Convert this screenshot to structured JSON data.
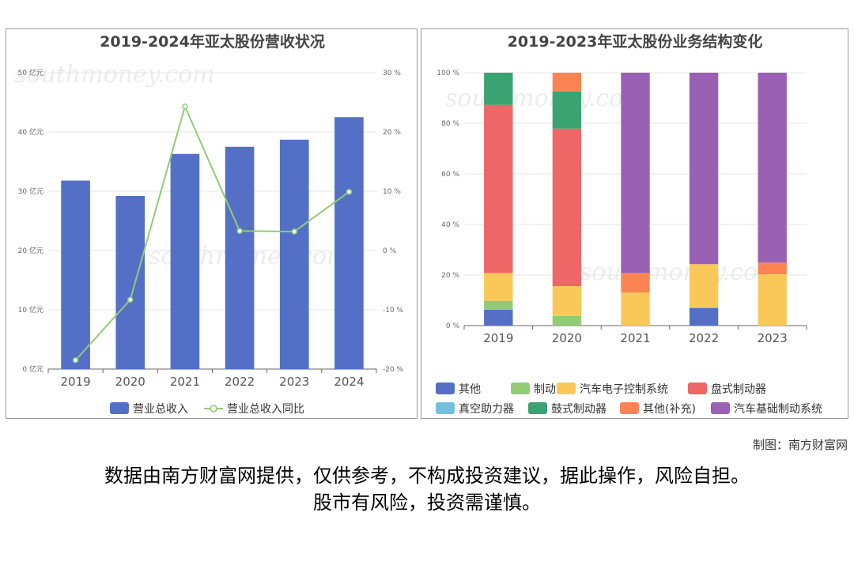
{
  "chart_data": [
    {
      "type": "bar",
      "title": "2019-2024年亚太股份营收状况",
      "categories": [
        "2019",
        "2020",
        "2021",
        "2022",
        "2023",
        "2024"
      ],
      "y_left": {
        "ticks": [
          "0 亿元",
          "10 亿元",
          "20 亿元",
          "30 亿元",
          "40 亿元",
          "50 亿元"
        ],
        "range": [
          0,
          50
        ]
      },
      "y_right": {
        "ticks": [
          "-20 %",
          "-10 %",
          "0 %",
          "10 %",
          "20 %",
          "30 %"
        ],
        "range": [
          -20,
          30
        ]
      },
      "series": [
        {
          "name": "营业总收入",
          "type": "bar",
          "color": "#5470c6",
          "values": [
            31.8,
            29.2,
            36.3,
            37.5,
            38.7,
            42.5
          ]
        },
        {
          "name": "营业总收入同比",
          "type": "line",
          "axis": "right",
          "color": "#91cc75",
          "values": [
            -18.5,
            -8.3,
            24.3,
            3.3,
            3.2,
            9.9
          ]
        }
      ],
      "legend_position": "bottom"
    },
    {
      "type": "bar",
      "stacked": true,
      "title": "2019-2023年亚太股份业务结构变化",
      "categories": [
        "2019",
        "2020",
        "2021",
        "2022",
        "2023"
      ],
      "y_axis": {
        "ticks": [
          "0 %",
          "20 %",
          "40 %",
          "60 %",
          "80 %",
          "100 %"
        ],
        "range": [
          0,
          100
        ]
      },
      "series": [
        {
          "name": "其他",
          "color": "#5470c6",
          "values": [
            6.3,
            0,
            0,
            7.0,
            0
          ]
        },
        {
          "name": "制动泵",
          "color": "#91cc75",
          "values": [
            3.5,
            3.8,
            0,
            0,
            0
          ]
        },
        {
          "name": "汽车电子控制系统",
          "color": "#fac858",
          "values": [
            11,
            11.8,
            13.1,
            17.3,
            20.3
          ]
        },
        {
          "name": "盘式制动器",
          "color": "#ee6666",
          "values": [
            66.5,
            62.3,
            0,
            0,
            0
          ]
        },
        {
          "name": "真空助力器",
          "color": "#73c0de",
          "values": [
            0,
            0,
            0,
            0,
            0
          ]
        },
        {
          "name": "鼓式制动器",
          "color": "#3ba272",
          "values": [
            12.7,
            14.6,
            0,
            0,
            0
          ]
        },
        {
          "name": "其他(补充)",
          "color": "#fc8452",
          "values": [
            0,
            7.5,
            7.7,
            0,
            4.6
          ]
        },
        {
          "name": "汽车基础制动系统",
          "color": "#9a60b4",
          "values": [
            0,
            0,
            79.2,
            75.7,
            75.1
          ]
        }
      ],
      "legend_position": "bottom"
    }
  ],
  "footer": {
    "credit": "制图：南方财富网",
    "disclaimer_line1": "数据由南方财富网提供，仅供参考，不构成投资建议，据此操作，风险自担。",
    "disclaimer_line2": "股市有风险，投资需谨慎。"
  }
}
